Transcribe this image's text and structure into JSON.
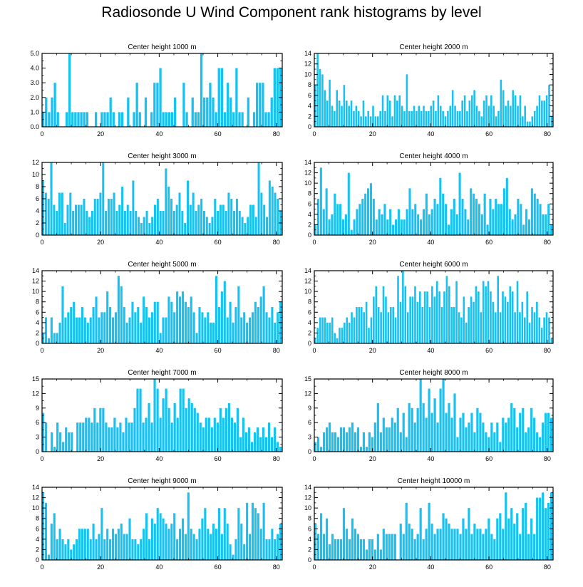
{
  "title": "Radiosonde U Wind Component rank histograms by level",
  "bar_color": "#17c2f2",
  "chart_data": [
    {
      "type": "bar",
      "title": "Center height 1000 m",
      "xlim": [
        0,
        82
      ],
      "xticks": [
        0,
        20,
        40,
        60,
        80
      ],
      "ylim": [
        0,
        5
      ],
      "yticks": [
        0,
        1,
        2,
        3,
        4,
        5
      ],
      "ytick_labels": [
        "0.0",
        "1.0",
        "2.0",
        "3.0",
        "4.0",
        "5.0"
      ],
      "values": [
        1,
        2,
        1,
        2,
        3,
        1,
        0,
        0,
        1,
        5,
        1,
        1,
        1,
        1,
        1,
        1,
        0,
        0,
        1,
        0,
        1,
        1,
        1,
        2,
        1,
        0,
        1,
        1,
        0,
        2,
        0,
        1,
        3,
        1,
        0,
        2,
        0,
        1,
        3,
        3,
        4,
        1,
        1,
        1,
        1,
        2,
        0,
        0,
        3,
        1,
        0,
        2,
        1,
        1,
        5,
        2,
        2,
        3,
        2,
        1,
        4,
        4,
        1,
        3,
        2,
        1,
        4,
        1,
        1,
        0,
        2,
        0,
        1,
        3,
        3,
        3,
        1,
        1,
        2,
        4,
        4,
        4
      ]
    },
    {
      "type": "bar",
      "title": "Center height 2000 m",
      "xlim": [
        0,
        82
      ],
      "xticks": [
        0,
        20,
        40,
        60,
        80
      ],
      "ylim": [
        0,
        14
      ],
      "yticks": [
        0,
        2,
        4,
        6,
        8,
        10,
        12,
        14
      ],
      "ytick_labels": [
        "0",
        "2",
        "4",
        "6",
        "8",
        "10",
        "12",
        "14"
      ],
      "values": [
        8,
        14,
        11,
        10,
        7,
        5,
        9,
        4,
        3,
        7,
        5,
        4,
        8,
        5,
        4,
        5,
        3,
        4,
        3,
        2,
        5,
        2,
        3,
        2,
        4,
        2,
        2,
        3,
        6,
        3,
        6,
        5,
        2,
        6,
        5,
        6,
        4,
        3,
        10,
        3,
        3,
        4,
        3,
        4,
        3,
        4,
        3,
        3,
        4,
        5,
        3,
        6,
        4,
        3,
        2,
        3,
        4,
        7,
        4,
        3,
        3,
        5,
        6,
        3,
        5,
        6,
        7,
        4,
        3,
        2,
        5,
        6,
        4,
        6,
        4,
        2,
        3,
        9,
        7,
        4,
        5,
        4,
        7,
        6,
        4,
        6,
        2,
        4,
        1,
        1,
        2,
        3,
        4,
        6,
        5,
        5,
        6,
        8,
        2
      ]
    },
    {
      "type": "bar",
      "title": "Center height 3000 m",
      "xlim": [
        0,
        82
      ],
      "xticks": [
        0,
        20,
        40,
        60,
        80
      ],
      "ylim": [
        0,
        12
      ],
      "yticks": [
        0,
        2,
        4,
        6,
        8,
        10,
        12
      ],
      "ytick_labels": [
        "0",
        "2",
        "4",
        "6",
        "8",
        "10",
        "12"
      ],
      "values": [
        9,
        7,
        6,
        12,
        5,
        4,
        7,
        7,
        2,
        5,
        7,
        4,
        5,
        5,
        5,
        6,
        4,
        3,
        4,
        6,
        6,
        7,
        12,
        4,
        6,
        6,
        7,
        4,
        5,
        8,
        4,
        5,
        4,
        9,
        4,
        3,
        2,
        3,
        4,
        2,
        3,
        5,
        6,
        4,
        4,
        11,
        8,
        6,
        4,
        5,
        7,
        4,
        2,
        9,
        5,
        7,
        4,
        5,
        6,
        4,
        3,
        2,
        3,
        6,
        4,
        5,
        5,
        4,
        7,
        6,
        4,
        6,
        4,
        3,
        2,
        3,
        5,
        5,
        3,
        12,
        7,
        5,
        3,
        9,
        8,
        7,
        6,
        4
      ]
    },
    {
      "type": "bar",
      "title": "Center height 4000 m",
      "xlim": [
        0,
        82
      ],
      "xticks": [
        0,
        20,
        40,
        60,
        80
      ],
      "ylim": [
        0,
        14
      ],
      "yticks": [
        0,
        2,
        4,
        6,
        8,
        10,
        12,
        14
      ],
      "ytick_labels": [
        "0",
        "2",
        "4",
        "6",
        "8",
        "10",
        "12",
        "14"
      ],
      "values": [
        2,
        7,
        13,
        5,
        9,
        3,
        4,
        8,
        6,
        6,
        3,
        4,
        12,
        1,
        3,
        5,
        6,
        7,
        8,
        9,
        10,
        7,
        3,
        5,
        4,
        6,
        3,
        5,
        2,
        3,
        5,
        3,
        3,
        5,
        9,
        5,
        6,
        4,
        3,
        5,
        8,
        4,
        5,
        7,
        6,
        11,
        8,
        6,
        2,
        5,
        7,
        4,
        12,
        7,
        5,
        3,
        9,
        8,
        7,
        6,
        4,
        8,
        2,
        7,
        5,
        7,
        6,
        6,
        9,
        11,
        5,
        3,
        4,
        7,
        6,
        2,
        5,
        3,
        9,
        8,
        7,
        6,
        4,
        4,
        6,
        2
      ]
    },
    {
      "type": "bar",
      "title": "Center height 5000 m",
      "xlim": [
        0,
        82
      ],
      "xticks": [
        0,
        20,
        40,
        60,
        80
      ],
      "ylim": [
        0,
        14
      ],
      "yticks": [
        0,
        2,
        4,
        6,
        8,
        10,
        12,
        14
      ],
      "ytick_labels": [
        "0",
        "2",
        "4",
        "6",
        "8",
        "10",
        "12",
        "14"
      ],
      "values": [
        2,
        5,
        1,
        5,
        2,
        2,
        4,
        11,
        5,
        6,
        7,
        8,
        5,
        5,
        7,
        5,
        4,
        5,
        7,
        9,
        5,
        6,
        6,
        10,
        7,
        5,
        6,
        13,
        11,
        7,
        4,
        5,
        8,
        6,
        7,
        4,
        9,
        7,
        5,
        6,
        8,
        8,
        2,
        5,
        5,
        9,
        8,
        6,
        10,
        9,
        10,
        8,
        7,
        9,
        6,
        2,
        7,
        6,
        5,
        6,
        4,
        4,
        13,
        7,
        10,
        12,
        5,
        8,
        4,
        7,
        11,
        5,
        6,
        4,
        5,
        6,
        8,
        7,
        9,
        11,
        6,
        5,
        7,
        4,
        6,
        8
      ]
    },
    {
      "type": "bar",
      "title": "Center height 6000 m",
      "xlim": [
        0,
        82
      ],
      "xticks": [
        0,
        20,
        40,
        60,
        80
      ],
      "ylim": [
        0,
        14
      ],
      "yticks": [
        0,
        2,
        4,
        6,
        8,
        10,
        12,
        14
      ],
      "ytick_labels": [
        "0",
        "2",
        "4",
        "6",
        "8",
        "10",
        "12",
        "14"
      ],
      "values": [
        1,
        3,
        5,
        5,
        5,
        4,
        4,
        5,
        2,
        1,
        3,
        3,
        4,
        5,
        4,
        6,
        5,
        7,
        7,
        7,
        6,
        8,
        3,
        5,
        9,
        11,
        7,
        6,
        11,
        9,
        6,
        7,
        7,
        5,
        13,
        8,
        14,
        11,
        6,
        9,
        9,
        11,
        8,
        10,
        7,
        10,
        10,
        7,
        11,
        9,
        12,
        10,
        7,
        10,
        13,
        11,
        7,
        7,
        12,
        6,
        5,
        9,
        4,
        7,
        9,
        8,
        11,
        10,
        6,
        12,
        11,
        12,
        10,
        8,
        6,
        13,
        6,
        10,
        9,
        8,
        11,
        10,
        6,
        12,
        6,
        8,
        5,
        10,
        4,
        7,
        6,
        8,
        5,
        3,
        5,
        6,
        5,
        1
      ]
    },
    {
      "type": "bar",
      "title": "Center height 7000 m",
      "xlim": [
        0,
        82
      ],
      "xticks": [
        0,
        20,
        40,
        60,
        80
      ],
      "ylim": [
        0,
        15
      ],
      "yticks": [
        0,
        3,
        6,
        9,
        12,
        15
      ],
      "ytick_labels": [
        "0",
        "3",
        "6",
        "9",
        "12",
        "15"
      ],
      "values": [
        8,
        6,
        0,
        4,
        1,
        6,
        4,
        2,
        5,
        4,
        4,
        0,
        6,
        6,
        6,
        7,
        7,
        6,
        9,
        6,
        9,
        9,
        6,
        5,
        5,
        7,
        5,
        6,
        4,
        7,
        6,
        6,
        9,
        13,
        13,
        6,
        7,
        10,
        6,
        15,
        13,
        7,
        11,
        13,
        9,
        6,
        10,
        7,
        13,
        13,
        9,
        11,
        10,
        9,
        8,
        6,
        5,
        7,
        7,
        5,
        7,
        6,
        9,
        7,
        9,
        10,
        7,
        6,
        9,
        3,
        7,
        4,
        5,
        2,
        4,
        5,
        3,
        5,
        3,
        6,
        3,
        5,
        2,
        1
      ]
    },
    {
      "type": "bar",
      "title": "Center height 8000 m",
      "xlim": [
        0,
        82
      ],
      "xticks": [
        0,
        20,
        40,
        60,
        80
      ],
      "ylim": [
        0,
        15
      ],
      "yticks": [
        0,
        3,
        6,
        9,
        12,
        15
      ],
      "ytick_labels": [
        "0",
        "3",
        "6",
        "9",
        "12",
        "15"
      ],
      "values": [
        2,
        3,
        1,
        4,
        5,
        6,
        4,
        4,
        3,
        5,
        5,
        4,
        5,
        6,
        4,
        5,
        1,
        4,
        1,
        4,
        3,
        6,
        10,
        4,
        7,
        5,
        5,
        7,
        6,
        9,
        4,
        8,
        3,
        10,
        9,
        6,
        9,
        15,
        10,
        7,
        13,
        8,
        11,
        6,
        13,
        15,
        8,
        10,
        7,
        12,
        3,
        7,
        8,
        5,
        6,
        8,
        4,
        9,
        8,
        6,
        4,
        3,
        6,
        4,
        6,
        2,
        7,
        6,
        7,
        10,
        9,
        5,
        8,
        9,
        4,
        5,
        9,
        7,
        4,
        3,
        6,
        8,
        8,
        7
      ]
    },
    {
      "type": "bar",
      "title": "Center height 9000 m",
      "xlim": [
        0,
        82
      ],
      "xticks": [
        0,
        20,
        40,
        60,
        80
      ],
      "ylim": [
        0,
        14
      ],
      "yticks": [
        0,
        2,
        4,
        6,
        8,
        10,
        12,
        14
      ],
      "ytick_labels": [
        "0",
        "2",
        "4",
        "6",
        "8",
        "10",
        "12",
        "14"
      ],
      "values": [
        13,
        11,
        1,
        7,
        9,
        4,
        6,
        4,
        3,
        4,
        2,
        3,
        4,
        6,
        6,
        6,
        6,
        4,
        7,
        4,
        5,
        10,
        4,
        6,
        4,
        6,
        5,
        6,
        7,
        5,
        5,
        8,
        4,
        4,
        3,
        4,
        6,
        9,
        4,
        8,
        7,
        10,
        9,
        8,
        7,
        6,
        7,
        9,
        4,
        6,
        8,
        5,
        13,
        6,
        5,
        4,
        6,
        8,
        10,
        6,
        5,
        7,
        6,
        10,
        5,
        10,
        7,
        3,
        1,
        4,
        10,
        7,
        3,
        11,
        5,
        11,
        10,
        9,
        6,
        11,
        4,
        4,
        6,
        4,
        5,
        7
      ]
    },
    {
      "type": "bar",
      "title": "Center height 10000 m",
      "xlim": [
        0,
        82
      ],
      "xticks": [
        0,
        20,
        40,
        60,
        80
      ],
      "ylim": [
        0,
        14
      ],
      "yticks": [
        0,
        2,
        4,
        6,
        8,
        10,
        12,
        14
      ],
      "ytick_labels": [
        "0",
        "2",
        "4",
        "6",
        "8",
        "10",
        "12",
        "14"
      ],
      "values": [
        7,
        5,
        9,
        5,
        8,
        3,
        5,
        4,
        4,
        4,
        10,
        6,
        4,
        8,
        6,
        5,
        4,
        4,
        2,
        4,
        4,
        2,
        5,
        2,
        6,
        5,
        5,
        5,
        5,
        0,
        7,
        5,
        11,
        7,
        6,
        4,
        5,
        10,
        4,
        6,
        11,
        7,
        5,
        6,
        6,
        9,
        8,
        7,
        6,
        6,
        6,
        5,
        8,
        6,
        10,
        5,
        7,
        6,
        6,
        5,
        6,
        8,
        5,
        4,
        8,
        9,
        6,
        13,
        8,
        10,
        7,
        9,
        5,
        10,
        11,
        5,
        8,
        5,
        12,
        12,
        13,
        10,
        11,
        13
      ]
    }
  ]
}
